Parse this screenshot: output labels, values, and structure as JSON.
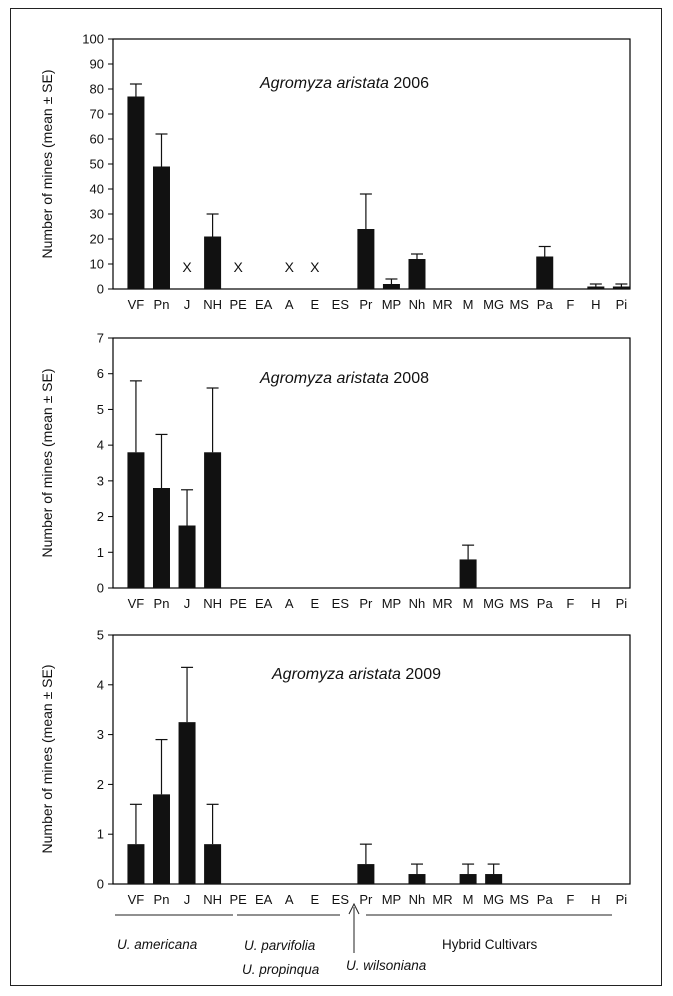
{
  "chart_data": [
    {
      "type": "bar",
      "title_italic": "Agromyza aristata",
      "title_year": "2006",
      "ylabel": "Number of mines (mean ± SE)",
      "ylim": [
        0,
        100
      ],
      "yticks": [
        0,
        10,
        20,
        30,
        40,
        50,
        60,
        70,
        80,
        90,
        100
      ],
      "categories": [
        "VF",
        "Pn",
        "J",
        "NH",
        "PE",
        "EA",
        "A",
        "E",
        "ES",
        "Pr",
        "MP",
        "Nh",
        "MR",
        "M",
        "MG",
        "MS",
        "Pa",
        "F",
        "H",
        "Pi"
      ],
      "values": [
        77,
        49,
        null,
        21,
        null,
        0,
        null,
        null,
        0,
        24,
        2,
        12,
        0,
        0,
        0,
        0,
        13,
        0,
        1,
        1
      ],
      "errors": [
        5,
        13,
        null,
        9,
        null,
        0,
        null,
        null,
        0,
        14,
        2,
        2,
        0,
        0,
        0,
        0,
        4,
        0,
        1,
        1
      ],
      "x_marks": [
        "J",
        "PE",
        "A",
        "E"
      ],
      "x_mark_symbol": "X"
    },
    {
      "type": "bar",
      "title_italic": "Agromyza aristata",
      "title_year": "2008",
      "ylabel": "Number of mines (mean ± SE)",
      "ylim": [
        0,
        7
      ],
      "yticks": [
        0,
        1,
        2,
        3,
        4,
        5,
        6,
        7
      ],
      "categories": [
        "VF",
        "Pn",
        "J",
        "NH",
        "PE",
        "EA",
        "A",
        "E",
        "ES",
        "Pr",
        "MP",
        "Nh",
        "MR",
        "M",
        "MG",
        "MS",
        "Pa",
        "F",
        "H",
        "Pi"
      ],
      "values": [
        3.8,
        2.8,
        1.75,
        3.8,
        0,
        0,
        0,
        0,
        0,
        0,
        0,
        0,
        0,
        0.8,
        0,
        0,
        0,
        0,
        0,
        0
      ],
      "errors": [
        2.0,
        1.5,
        1.0,
        1.8,
        0,
        0,
        0,
        0,
        0,
        0,
        0,
        0,
        0,
        0.4,
        0,
        0,
        0,
        0,
        0,
        0
      ]
    },
    {
      "type": "bar",
      "title_italic": "Agromyza aristata",
      "title_year": "2009",
      "ylabel": "Number of mines (mean ± SE)",
      "ylim": [
        0,
        5
      ],
      "yticks": [
        0,
        1,
        2,
        3,
        4,
        5
      ],
      "categories": [
        "VF",
        "Pn",
        "J",
        "NH",
        "PE",
        "EA",
        "A",
        "E",
        "ES",
        "Pr",
        "MP",
        "Nh",
        "MR",
        "M",
        "MG",
        "MS",
        "Pa",
        "F",
        "H",
        "Pi"
      ],
      "values": [
        0.8,
        1.8,
        3.25,
        0.8,
        0,
        0,
        0,
        0,
        0,
        0.4,
        0,
        0.2,
        0,
        0.2,
        0.2,
        0,
        0,
        0,
        0,
        0
      ],
      "errors": [
        0.8,
        1.1,
        1.1,
        0.8,
        0,
        0,
        0,
        0,
        0,
        0.4,
        0,
        0.2,
        0,
        0.2,
        0.2,
        0,
        0,
        0,
        0,
        0
      ]
    }
  ],
  "groups": {
    "americana": "U. americana",
    "parvifolia": "U. parvifolia",
    "propinqua": "U. propinqua",
    "wilsoniana": "U. wilsoniana",
    "hybrid": "Hybrid  Cultivars"
  }
}
